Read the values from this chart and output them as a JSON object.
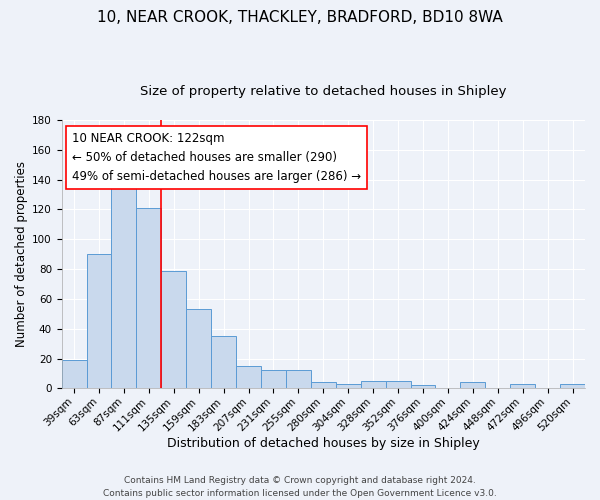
{
  "title": "10, NEAR CROOK, THACKLEY, BRADFORD, BD10 8WA",
  "subtitle": "Size of property relative to detached houses in Shipley",
  "xlabel": "Distribution of detached houses by size in Shipley",
  "ylabel": "Number of detached properties",
  "bar_labels": [
    "39sqm",
    "63sqm",
    "87sqm",
    "111sqm",
    "135sqm",
    "159sqm",
    "183sqm",
    "207sqm",
    "231sqm",
    "255sqm",
    "280sqm",
    "304sqm",
    "328sqm",
    "352sqm",
    "376sqm",
    "400sqm",
    "424sqm",
    "448sqm",
    "472sqm",
    "496sqm",
    "520sqm"
  ],
  "bar_values": [
    19,
    90,
    138,
    121,
    79,
    53,
    35,
    15,
    12,
    12,
    4,
    3,
    5,
    5,
    2,
    0,
    4,
    0,
    3,
    0,
    3
  ],
  "bar_color": "#c9d9ed",
  "bar_edge_color": "#5b9bd5",
  "ylim": [
    0,
    180
  ],
  "yticks": [
    0,
    20,
    40,
    60,
    80,
    100,
    120,
    140,
    160,
    180
  ],
  "vline_x": 3.5,
  "vline_color": "red",
  "annotation_text": "10 NEAR CROOK: 122sqm\n← 50% of detached houses are smaller (290)\n49% of semi-detached houses are larger (286) →",
  "annotation_box_color": "white",
  "annotation_box_edge": "red",
  "footer_line1": "Contains HM Land Registry data © Crown copyright and database right 2024.",
  "footer_line2": "Contains public sector information licensed under the Open Government Licence v3.0.",
  "bg_color": "#eef2f9",
  "title_fontsize": 11,
  "subtitle_fontsize": 9.5,
  "xlabel_fontsize": 9,
  "ylabel_fontsize": 8.5,
  "tick_fontsize": 7.5,
  "annotation_fontsize": 8.5,
  "footer_fontsize": 6.5
}
